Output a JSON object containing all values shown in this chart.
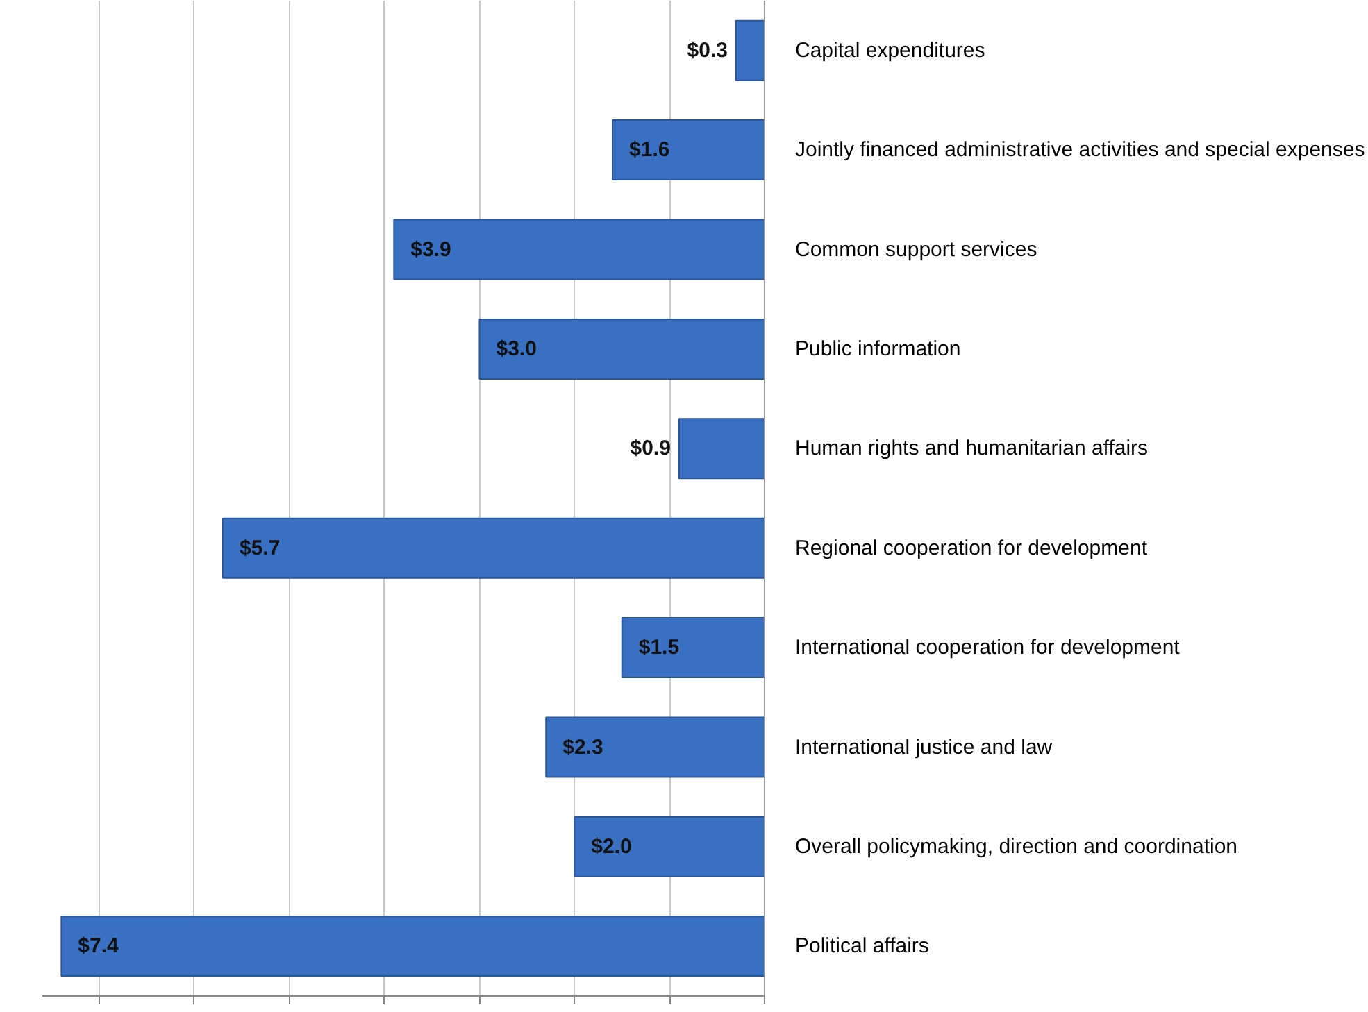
{
  "chart_data": {
    "type": "bar",
    "orientation": "horizontal",
    "categories": [
      "Capital expenditures",
      "Jointly financed administrative activities and special expenses",
      "Common support services",
      "Public information",
      "Human rights and humanitarian affairs",
      "Regional cooperation for development",
      "International cooperation for development",
      "International justice and law",
      "Overall policymaking, direction and coordination",
      "Political affairs"
    ],
    "values": [
      0.3,
      1.6,
      3.9,
      3.0,
      0.9,
      5.7,
      1.5,
      2.3,
      2.0,
      7.4
    ],
    "value_labels": [
      "$0.3",
      "$1.6",
      "$3.9",
      "$3.0",
      "$0.9",
      "$5.7",
      "$1.5",
      "$2.3",
      "$2.0",
      "$7.4"
    ],
    "color": "#3a70c2",
    "xlim": [
      7.6,
      0
    ],
    "xticks": [
      {
        "value": 7,
        "label": null
      },
      {
        "value": 6,
        "label": null
      },
      {
        "value": 5,
        "label": null
      },
      {
        "value": 4,
        "label": null
      },
      {
        "value": 3,
        "label": null
      },
      {
        "value": 2,
        "label": null
      },
      {
        "value": 1,
        "label": null
      },
      {
        "value": 0,
        "label": null
      }
    ],
    "grid": "x",
    "tick_labels": "y"
  }
}
